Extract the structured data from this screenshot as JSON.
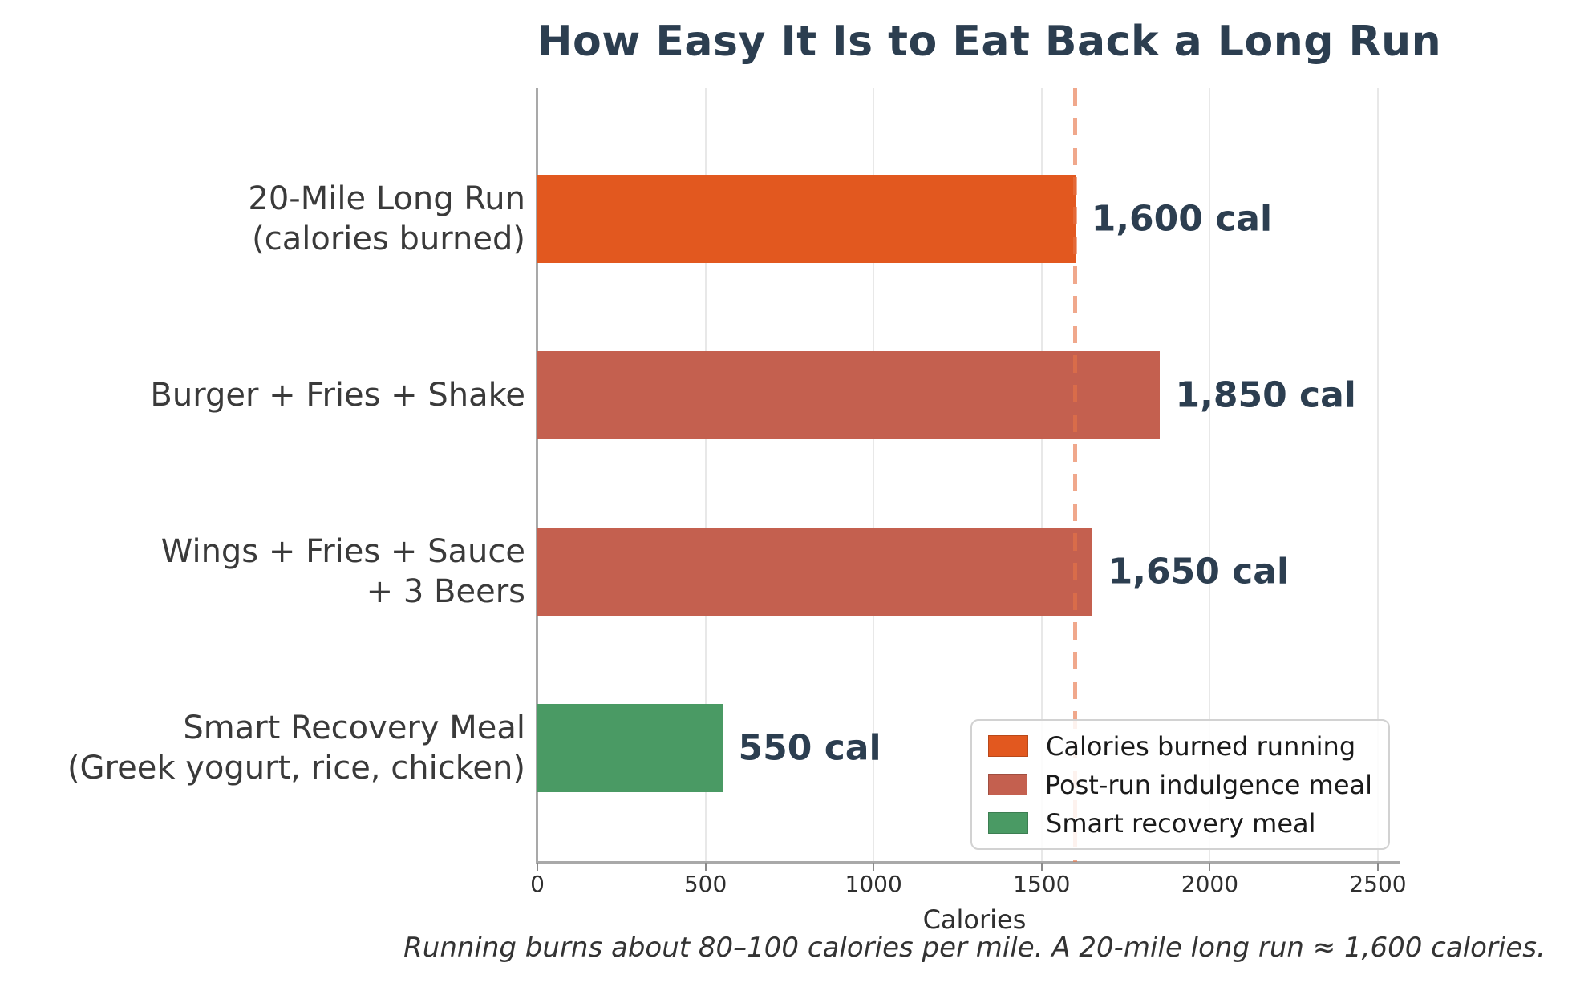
{
  "title": "How Easy It Is to Eat Back a Long Run",
  "chart_data": {
    "type": "bar",
    "orientation": "horizontal",
    "title": "How Easy It Is to Eat Back a Long Run",
    "xlabel": "Calories",
    "footnote": "Running burns about 80–100 calories per mile. A 20-mile long run ≈ 1,600 calories.",
    "xlim": [
      0,
      2565
    ],
    "xticks": [
      0,
      500,
      1000,
      1500,
      2000,
      2500
    ],
    "grid": true,
    "bars": [
      {
        "category_lines": [
          "20-Mile Long Run",
          "(calories burned)"
        ],
        "value": 1600,
        "value_label": "1,600 cal",
        "series": "Calories burned running",
        "color": "#E2581F"
      },
      {
        "category_lines": [
          "Burger + Fries + Shake"
        ],
        "value": 1850,
        "value_label": "1,850 cal",
        "series": "Post-run indulgence meal",
        "color": "#C4604F"
      },
      {
        "category_lines": [
          "Wings + Fries + Sauce",
          "+ 3 Beers"
        ],
        "value": 1650,
        "value_label": "1,650 cal",
        "series": "Post-run indulgence meal",
        "color": "#C4604F"
      },
      {
        "category_lines": [
          "Smart Recovery Meal",
          "(Greek yogurt, rice, chicken)"
        ],
        "value": 550,
        "value_label": "550 cal",
        "series": "Smart recovery meal",
        "color": "#4A9A64"
      }
    ],
    "reference_line": {
      "value": 1600,
      "style": "dashed",
      "color": "#EF9F80"
    },
    "legend": {
      "position": "lower right",
      "entries": [
        {
          "label": "Calories burned running",
          "color": "#E2581F"
        },
        {
          "label": "Post-run indulgence meal",
          "color": "#C4604F"
        },
        {
          "label": "Smart recovery meal",
          "color": "#4A9A64"
        }
      ]
    },
    "colors": {
      "title_text": "#2C3E50",
      "value_label_text": "#2C3E50",
      "category_text": "#3a3a3a",
      "gridline": "#e8e8e8",
      "axis_line": "#a9a9a9",
      "background": "#ffffff"
    }
  }
}
